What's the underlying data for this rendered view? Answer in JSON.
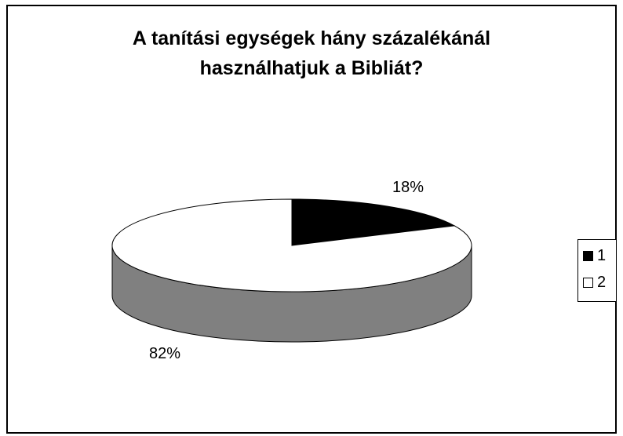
{
  "chart_data": {
    "type": "pie",
    "title_lines": [
      "A tanítási egységek hány százalékánál",
      "használhatjuk a Bibliát?"
    ],
    "categories": [
      "1",
      "2"
    ],
    "values": [
      18,
      82
    ],
    "data_labels": [
      "18%",
      "82%"
    ],
    "colors": [
      "#000000",
      "#ffffff"
    ],
    "side_color": "#808080",
    "three_d": true,
    "legend": {
      "position": "right",
      "entries": [
        "1",
        "2"
      ]
    }
  }
}
